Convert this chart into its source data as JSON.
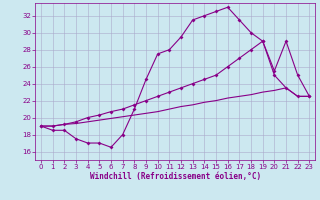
{
  "xlabel": "Windchill (Refroidissement éolien,°C)",
  "background_color": "#cce8f0",
  "grid_color": "#aaaacc",
  "line_color": "#880088",
  "x_ticks": [
    0,
    1,
    2,
    3,
    4,
    5,
    6,
    7,
    8,
    9,
    10,
    11,
    12,
    13,
    14,
    15,
    16,
    17,
    18,
    19,
    20,
    21,
    22,
    23
  ],
  "y_ticks": [
    16,
    18,
    20,
    22,
    24,
    26,
    28,
    30,
    32
  ],
  "ylim": [
    15.0,
    33.5
  ],
  "xlim": [
    -0.5,
    23.5
  ],
  "line1_x": [
    0,
    1,
    2,
    3,
    4,
    5,
    6,
    7,
    8,
    9,
    10,
    11,
    12,
    13,
    14,
    15,
    16,
    17,
    18,
    19,
    20,
    21,
    22,
    23
  ],
  "line1_y": [
    19.0,
    18.5,
    18.5,
    17.5,
    17.0,
    17.0,
    16.5,
    18.0,
    21.0,
    24.5,
    27.5,
    28.0,
    29.5,
    31.5,
    32.0,
    32.5,
    33.0,
    31.5,
    30.0,
    29.0,
    25.0,
    23.5,
    22.5,
    22.5
  ],
  "line2_x": [
    0,
    1,
    2,
    3,
    4,
    5,
    6,
    7,
    8,
    9,
    10,
    11,
    12,
    13,
    14,
    15,
    16,
    17,
    18,
    19,
    20,
    21,
    22,
    23
  ],
  "line2_y": [
    19.0,
    19.0,
    19.2,
    19.3,
    19.5,
    19.7,
    19.9,
    20.1,
    20.3,
    20.5,
    20.7,
    21.0,
    21.3,
    21.5,
    21.8,
    22.0,
    22.3,
    22.5,
    22.7,
    23.0,
    23.2,
    23.5,
    22.5,
    22.5
  ],
  "line3_x": [
    0,
    1,
    2,
    3,
    4,
    5,
    6,
    7,
    8,
    9,
    10,
    11,
    12,
    13,
    14,
    15,
    16,
    17,
    18,
    19,
    20,
    21,
    22,
    23
  ],
  "line3_y": [
    19.0,
    19.0,
    19.2,
    19.5,
    20.0,
    20.3,
    20.7,
    21.0,
    21.5,
    22.0,
    22.5,
    23.0,
    23.5,
    24.0,
    24.5,
    25.0,
    26.0,
    27.0,
    28.0,
    29.0,
    25.5,
    29.0,
    25.0,
    22.5
  ]
}
